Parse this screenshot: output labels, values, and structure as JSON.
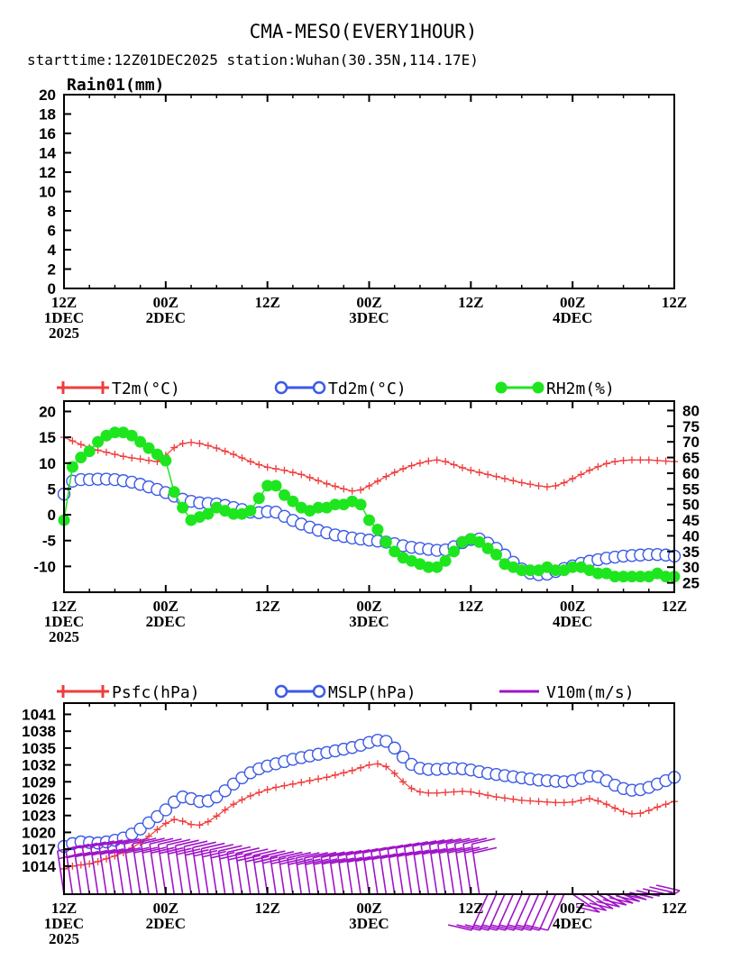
{
  "header": {
    "title": "CMA-MESO(EVERY1HOUR)",
    "subtitle": "starttime:12Z01DEC2025   station:Wuhan(30.35N,114.17E)"
  },
  "x_axis": {
    "ticks": [
      "12Z",
      "00Z",
      "12Z",
      "00Z",
      "12Z",
      "00Z",
      "12Z"
    ],
    "dates": [
      "1DEC",
      "2DEC",
      "",
      "3DEC",
      "",
      "4DEC",
      ""
    ],
    "year": "2025",
    "hours": [
      0,
      12,
      24,
      36,
      48,
      60,
      72
    ]
  },
  "chart_data": [
    {
      "type": "bar",
      "title": "Rain01(mm)",
      "ylim": [
        0,
        20
      ],
      "yticks": [
        0,
        2,
        4,
        6,
        8,
        10,
        12,
        14,
        16,
        18,
        20
      ],
      "series": [
        {
          "name": "Rain01(mm)",
          "values": []
        }
      ]
    },
    {
      "type": "line",
      "ylim_left": [
        -15,
        22
      ],
      "yticks_left": [
        20,
        15,
        10,
        5,
        0,
        -5,
        -10
      ],
      "ylim_right": [
        22,
        83
      ],
      "yticks_right": [
        80,
        75,
        70,
        65,
        60,
        55,
        50,
        45,
        40,
        35,
        30,
        25
      ],
      "x_hours": [
        0,
        1,
        2,
        3,
        4,
        5,
        6,
        7,
        8,
        9,
        10,
        11,
        12,
        13,
        14,
        15,
        16,
        17,
        18,
        19,
        20,
        21,
        22,
        23,
        24,
        25,
        26,
        27,
        28,
        29,
        30,
        31,
        32,
        33,
        34,
        35,
        36,
        37,
        38,
        39,
        40,
        41,
        42,
        43,
        44,
        45,
        46,
        47,
        48,
        49,
        50,
        51,
        52,
        53,
        54,
        55,
        56,
        57,
        58,
        59,
        60,
        61,
        62,
        63,
        64,
        65,
        66,
        67,
        68,
        69,
        70,
        71,
        72
      ],
      "series": [
        {
          "name": "T2m(°C)",
          "axis": "left",
          "color": "#f03c3c",
          "marker": "plus",
          "values": [
            15.0,
            14.3,
            13.6,
            13.0,
            12.5,
            12.1,
            11.7,
            11.3,
            11.0,
            10.8,
            10.5,
            10.3,
            11.5,
            13.0,
            13.8,
            14.0,
            13.8,
            13.4,
            12.9,
            12.3,
            11.7,
            11.0,
            10.3,
            9.7,
            9.2,
            8.9,
            8.6,
            8.2,
            7.8,
            7.2,
            6.6,
            6.0,
            5.5,
            5.0,
            4.6,
            4.8,
            5.6,
            6.5,
            7.4,
            8.2,
            8.9,
            9.5,
            10.0,
            10.4,
            10.6,
            10.3,
            9.7,
            9.1,
            8.6,
            8.2,
            7.8,
            7.4,
            7.0,
            6.6,
            6.2,
            5.9,
            5.6,
            5.4,
            5.6,
            6.2,
            7.0,
            7.8,
            8.6,
            9.3,
            9.9,
            10.3,
            10.5,
            10.6,
            10.6,
            10.6,
            10.5,
            10.4,
            10.3
          ]
        },
        {
          "name": "Td2m(°C)",
          "axis": "left",
          "color": "#3c5ae6",
          "marker": "circle",
          "values": [
            4.0,
            6.5,
            6.8,
            6.8,
            6.9,
            6.9,
            6.8,
            6.6,
            6.3,
            5.9,
            5.4,
            4.9,
            4.3,
            3.6,
            3.0,
            2.6,
            2.3,
            2.2,
            2.1,
            1.8,
            1.4,
            1.0,
            0.5,
            0.4,
            0.6,
            0.5,
            -0.3,
            -1.1,
            -1.8,
            -2.4,
            -3.0,
            -3.5,
            -3.9,
            -4.2,
            -4.5,
            -4.7,
            -4.9,
            -5.1,
            -5.3,
            -5.6,
            -6.0,
            -6.3,
            -6.5,
            -6.7,
            -6.9,
            -6.8,
            -6.2,
            -5.4,
            -4.8,
            -4.7,
            -5.5,
            -6.5,
            -7.8,
            -9.2,
            -10.5,
            -11.3,
            -11.6,
            -11.5,
            -11.0,
            -10.4,
            -9.9,
            -9.4,
            -9.0,
            -8.7,
            -8.4,
            -8.2,
            -8.0,
            -7.9,
            -7.8,
            -7.7,
            -7.7,
            -7.8,
            -8.0
          ]
        },
        {
          "name": "RH2m(%)",
          "axis": "right",
          "color": "#1ee61e",
          "marker": "dot",
          "values": [
            45,
            62,
            65,
            67,
            70,
            72,
            73,
            73,
            72,
            70,
            68,
            66,
            64,
            54,
            49,
            45,
            46,
            47,
            49,
            48,
            47,
            47,
            48,
            52,
            56,
            56,
            53,
            51,
            49,
            48,
            49,
            49,
            50,
            50,
            51,
            50,
            45,
            42,
            38,
            35,
            33,
            32,
            31,
            30,
            30,
            32,
            35,
            38,
            39,
            38,
            36,
            34,
            31,
            30,
            29,
            29,
            29,
            30,
            29,
            29,
            30,
            30,
            29,
            28,
            28,
            27,
            27,
            27,
            27,
            27,
            28,
            27,
            27
          ]
        }
      ]
    },
    {
      "type": "line",
      "ylim": [
        1009,
        1043
      ],
      "yticks": [
        1014,
        1017,
        1020,
        1023,
        1026,
        1029,
        1032,
        1035,
        1038,
        1041
      ],
      "x_hours": [
        0,
        1,
        2,
        3,
        4,
        5,
        6,
        7,
        8,
        9,
        10,
        11,
        12,
        13,
        14,
        15,
        16,
        17,
        18,
        19,
        20,
        21,
        22,
        23,
        24,
        25,
        26,
        27,
        28,
        29,
        30,
        31,
        32,
        33,
        34,
        35,
        36,
        37,
        38,
        39,
        40,
        41,
        42,
        43,
        44,
        45,
        46,
        47,
        48,
        49,
        50,
        51,
        52,
        53,
        54,
        55,
        56,
        57,
        58,
        59,
        60,
        61,
        62,
        63,
        64,
        65,
        66,
        67,
        68,
        69,
        70,
        71,
        72
      ],
      "series": [
        {
          "name": "Psfc(hPa)",
          "color": "#f03c3c",
          "marker": "plus",
          "values": [
            1013.5,
            1014.0,
            1014.2,
            1014.4,
            1014.8,
            1015.3,
            1015.8,
            1016.4,
            1017.2,
            1018.2,
            1019.3,
            1020.5,
            1021.6,
            1022.3,
            1022.0,
            1021.4,
            1021.3,
            1021.9,
            1022.9,
            1024.0,
            1025.0,
            1025.8,
            1026.5,
            1027.1,
            1027.6,
            1028.0,
            1028.3,
            1028.6,
            1028.9,
            1029.2,
            1029.5,
            1029.8,
            1030.2,
            1030.6,
            1031.0,
            1031.5,
            1032.0,
            1032.2,
            1031.7,
            1030.5,
            1029.0,
            1027.8,
            1027.2,
            1027.0,
            1027.0,
            1027.1,
            1027.2,
            1027.3,
            1027.2,
            1026.9,
            1026.6,
            1026.3,
            1026.1,
            1025.9,
            1025.7,
            1025.6,
            1025.5,
            1025.4,
            1025.3,
            1025.3,
            1025.4,
            1025.7,
            1026.0,
            1025.6,
            1025.0,
            1024.3,
            1023.7,
            1023.3,
            1023.4,
            1023.9,
            1024.5,
            1025.0,
            1025.5
          ]
        },
        {
          "name": "MSLP(hPa)",
          "color": "#3c5ae6",
          "marker": "circle",
          "values": [
            1017.5,
            1018.0,
            1018.3,
            1018.2,
            1018.1,
            1018.3,
            1018.6,
            1019.0,
            1019.7,
            1020.6,
            1021.7,
            1022.8,
            1024.0,
            1025.4,
            1026.3,
            1026.0,
            1025.5,
            1025.6,
            1026.3,
            1027.4,
            1028.6,
            1029.7,
            1030.6,
            1031.3,
            1031.8,
            1032.2,
            1032.6,
            1033.0,
            1033.3,
            1033.6,
            1033.9,
            1034.2,
            1034.5,
            1034.8,
            1035.1,
            1035.5,
            1036.0,
            1036.4,
            1036.2,
            1035.0,
            1033.4,
            1032.1,
            1031.4,
            1031.2,
            1031.2,
            1031.3,
            1031.4,
            1031.3,
            1031.1,
            1030.8,
            1030.5,
            1030.3,
            1030.1,
            1029.9,
            1029.7,
            1029.5,
            1029.3,
            1029.2,
            1029.1,
            1029.0,
            1029.2,
            1029.6,
            1030.0,
            1029.9,
            1029.2,
            1028.4,
            1027.8,
            1027.5,
            1027.6,
            1028.0,
            1028.6,
            1029.2,
            1029.8
          ]
        },
        {
          "name": "V10m(m/s)",
          "color": "#a014c8",
          "marker": "barb",
          "values": []
        }
      ]
    }
  ],
  "colors": {
    "t2m": "#f03c3c",
    "td2m": "#3c5ae6",
    "rh2m": "#1ee61e",
    "psfc": "#f03c3c",
    "mslp": "#3c5ae6",
    "v10m": "#a014c8"
  }
}
